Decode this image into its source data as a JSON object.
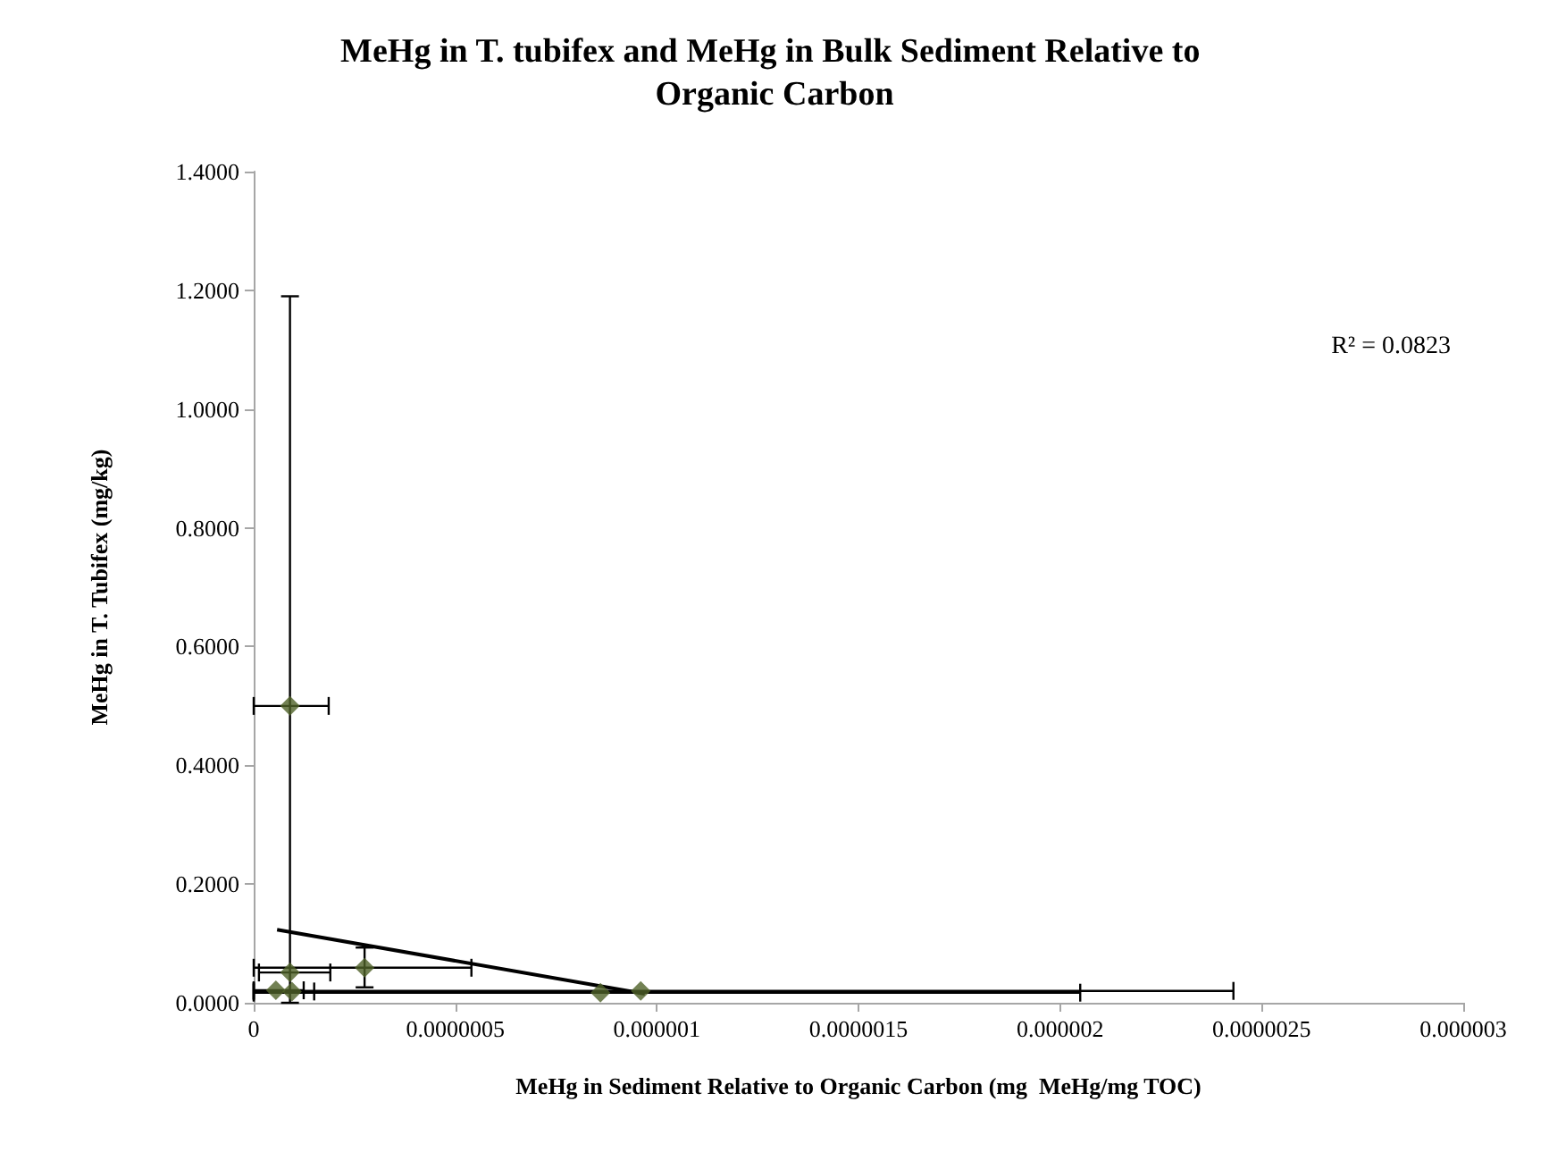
{
  "chart_data": {
    "type": "scatter",
    "title": "MeHg in T. tubifex and MeHg in Bulk Sediment Relative to Organic Carbon",
    "xlabel": "MeHg in Sediment Relative to Organic Carbon (mg  MeHg/mg TOC)",
    "ylabel": "MeHg in T. Tubifex (mg/kg)",
    "annotations": [
      "R² = 0.0823"
    ],
    "marker": "diamond",
    "grid": false,
    "xlim": [
      0,
      3e-06
    ],
    "xticks": [
      0,
      {
        "value": 5e-07,
        "label": "0.0000005"
      },
      {
        "value": 1e-06,
        "label": "0.000001"
      },
      {
        "value": 1.5e-06,
        "label": "0.0000015"
      },
      {
        "value": 2e-06,
        "label": "0.000002"
      },
      {
        "value": 2.5e-06,
        "label": "0.0000025"
      },
      {
        "value": 3e-06,
        "label": "0.000003"
      }
    ],
    "ylim": [
      0,
      1.4
    ],
    "yticks": [
      {
        "value": 0,
        "label": "0.0000"
      },
      {
        "value": 0.2,
        "label": "0.2000"
      },
      {
        "value": 0.4,
        "label": "0.4000"
      },
      {
        "value": 0.6,
        "label": "0.6000"
      },
      {
        "value": 0.8,
        "label": "0.8000"
      },
      {
        "value": 1.0,
        "label": "1.0000"
      },
      {
        "value": 1.2,
        "label": "1.2000"
      },
      {
        "value": 1.4,
        "label": "1.4000"
      }
    ],
    "series": [
      {
        "color": "#4f6228",
        "x": [
          9e-08,
          9e-08,
          2.75e-07,
          5.5e-08,
          9.5e-08,
          8.6e-07,
          9.6e-07
        ],
        "values": [
          0.5,
          0.051,
          0.059,
          0.021,
          0.019,
          0.017,
          0.02
        ],
        "errors": [
          [
            0,
            1.19
          ],
          null,
          [
            0.026,
            0.093
          ],
          null,
          null,
          null,
          null
        ],
        "xerrors": [
          [
            0,
            1.86e-07
          ],
          [
            1.3e-08,
            1.9e-07
          ],
          [
            0,
            5.4e-07
          ],
          [
            0,
            1.24e-07
          ],
          [
            0,
            1.5e-07
          ],
          [
            0,
            2.05e-06
          ],
          [
            0,
            2.43e-06
          ]
        ]
      },
      {
        "type": "line",
        "color": "#000000",
        "marker": "none",
        "x": [
          5.8e-08,
          9.7e-07
        ],
        "values": [
          0.123,
          0.015
        ]
      }
    ]
  }
}
